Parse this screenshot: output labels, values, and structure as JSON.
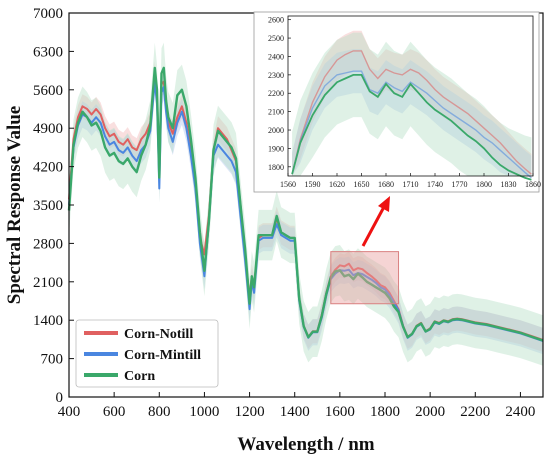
{
  "chart_data": {
    "type": "line",
    "xlabel": "Wavelength / nm",
    "ylabel": "Spectral Response Value",
    "xlim": [
      400,
      2500
    ],
    "ylim": [
      0,
      7000
    ],
    "xticks": [
      400,
      600,
      800,
      1000,
      1200,
      1400,
      1600,
      1800,
      2000,
      2200,
      2400
    ],
    "yticks": [
      0,
      700,
      1400,
      2100,
      2800,
      3500,
      4200,
      4900,
      5600,
      6300,
      7000
    ],
    "legend_position": "bottom-left",
    "series": [
      {
        "name": "Corn-Notill",
        "color": "#e06060",
        "band_color": "#f2b8b8",
        "x": [
          400,
          420,
          440,
          460,
          480,
          500,
          520,
          540,
          560,
          580,
          600,
          620,
          640,
          660,
          680,
          700,
          720,
          740,
          760,
          780,
          790,
          800,
          810,
          820,
          830,
          840,
          860,
          880,
          900,
          920,
          940,
          960,
          980,
          1000,
          1020,
          1040,
          1060,
          1080,
          1100,
          1120,
          1140,
          1160,
          1180,
          1200,
          1210,
          1220,
          1240,
          1260,
          1280,
          1300,
          1320,
          1340,
          1360,
          1380,
          1400,
          1420,
          1440,
          1460,
          1480,
          1500,
          1520,
          1540,
          1560,
          1580,
          1600,
          1620,
          1640,
          1660,
          1680,
          1700,
          1720,
          1740,
          1760,
          1780,
          1800,
          1820,
          1840,
          1860,
          1880,
          1900,
          1920,
          1940,
          1960,
          1980,
          2000,
          2020,
          2040,
          2060,
          2080,
          2100,
          2120,
          2140,
          2160,
          2180,
          2200,
          2250,
          2300,
          2350,
          2400,
          2450,
          2500
        ],
        "y": [
          3600,
          4700,
          5100,
          5300,
          5250,
          5150,
          5250,
          5150,
          4900,
          4750,
          4800,
          4650,
          4600,
          4700,
          4550,
          4500,
          4700,
          4800,
          5000,
          5900,
          5500,
          4200,
          5700,
          5750,
          5300,
          5000,
          4800,
          5100,
          5300,
          5000,
          4500,
          3900,
          2900,
          2600,
          3300,
          4500,
          4900,
          4800,
          4700,
          4500,
          4300,
          3500,
          2600,
          1800,
          2200,
          2000,
          2900,
          2950,
          2950,
          2950,
          3250,
          3000,
          2950,
          2900,
          2900,
          1800,
          1300,
          1100,
          1200,
          1200,
          1500,
          1900,
          2200,
          2320,
          2400,
          2380,
          2430,
          2310,
          2350,
          2330,
          2260,
          2200,
          2130,
          2040,
          2000,
          1900,
          1750,
          1600,
          1300,
          1100,
          1150,
          1300,
          1350,
          1200,
          1250,
          1380,
          1350,
          1400,
          1380,
          1420,
          1430,
          1420,
          1400,
          1380,
          1360,
          1330,
          1280,
          1230,
          1180,
          1110,
          1040
        ]
      },
      {
        "name": "Corn-Mintill",
        "color": "#4a86e0",
        "band_color": "#b4c8ee",
        "x": [
          400,
          420,
          440,
          460,
          480,
          500,
          520,
          540,
          560,
          580,
          600,
          620,
          640,
          660,
          680,
          700,
          720,
          740,
          760,
          780,
          790,
          800,
          810,
          820,
          830,
          840,
          860,
          880,
          900,
          920,
          940,
          960,
          980,
          1000,
          1020,
          1040,
          1060,
          1080,
          1100,
          1120,
          1140,
          1160,
          1180,
          1200,
          1210,
          1220,
          1240,
          1260,
          1280,
          1300,
          1320,
          1340,
          1360,
          1380,
          1400,
          1420,
          1440,
          1460,
          1480,
          1500,
          1520,
          1540,
          1560,
          1580,
          1600,
          1620,
          1640,
          1660,
          1680,
          1700,
          1720,
          1740,
          1760,
          1780,
          1800,
          1820,
          1840,
          1860,
          1880,
          1900,
          1920,
          1940,
          1960,
          1980,
          2000,
          2020,
          2040,
          2060,
          2080,
          2100,
          2120,
          2140,
          2160,
          2180,
          2200,
          2250,
          2300,
          2350,
          2400,
          2450,
          2500
        ],
        "y": [
          3500,
          4550,
          4950,
          5150,
          5100,
          5000,
          5100,
          5000,
          4750,
          4600,
          4650,
          4500,
          4450,
          4550,
          4400,
          4300,
          4500,
          4600,
          4850,
          5750,
          5350,
          3800,
          5550,
          5650,
          5200,
          4900,
          4650,
          5000,
          5200,
          4900,
          4400,
          3800,
          2800,
          2200,
          3200,
          4400,
          4600,
          4500,
          4400,
          4300,
          4100,
          3300,
          2500,
          1600,
          2100,
          1900,
          2850,
          2900,
          2900,
          2900,
          3150,
          2950,
          2900,
          2850,
          2850,
          1750,
          1280,
          1080,
          1180,
          1180,
          1450,
          1850,
          2150,
          2250,
          2310,
          2300,
          2320,
          2220,
          2260,
          2240,
          2190,
          2140,
          2080,
          2000,
          1960,
          1860,
          1720,
          1580,
          1290,
          1080,
          1140,
          1280,
          1330,
          1190,
          1230,
          1360,
          1330,
          1380,
          1360,
          1400,
          1410,
          1400,
          1380,
          1360,
          1340,
          1310,
          1260,
          1210,
          1160,
          1090,
          1020
        ]
      },
      {
        "name": "Corn",
        "color": "#3aa86a",
        "band_color": "#b8e0c8",
        "x": [
          400,
          420,
          440,
          460,
          480,
          500,
          520,
          540,
          560,
          580,
          600,
          620,
          640,
          660,
          680,
          700,
          720,
          740,
          760,
          780,
          790,
          800,
          810,
          820,
          830,
          840,
          860,
          880,
          900,
          920,
          940,
          960,
          980,
          1000,
          1020,
          1040,
          1060,
          1080,
          1100,
          1120,
          1140,
          1160,
          1180,
          1200,
          1210,
          1220,
          1240,
          1260,
          1280,
          1300,
          1320,
          1340,
          1360,
          1380,
          1400,
          1420,
          1440,
          1460,
          1480,
          1500,
          1520,
          1540,
          1560,
          1580,
          1600,
          1620,
          1640,
          1660,
          1680,
          1700,
          1720,
          1740,
          1760,
          1780,
          1800,
          1820,
          1840,
          1860,
          1880,
          1900,
          1920,
          1940,
          1960,
          1980,
          2000,
          2020,
          2040,
          2060,
          2080,
          2100,
          2120,
          2140,
          2160,
          2180,
          2200,
          2250,
          2300,
          2350,
          2400,
          2450,
          2500
        ],
        "y": [
          3400,
          4600,
          5000,
          5200,
          5100,
          4950,
          5000,
          4850,
          4550,
          4400,
          4450,
          4300,
          4250,
          4350,
          4200,
          4100,
          4400,
          4600,
          4950,
          6000,
          5600,
          4000,
          5900,
          6000,
          5400,
          5100,
          4900,
          5500,
          5600,
          5300,
          4700,
          4000,
          3000,
          2300,
          3200,
          4500,
          4850,
          4750,
          4650,
          4550,
          4350,
          3500,
          2700,
          1700,
          2200,
          2000,
          2950,
          2950,
          2950,
          2950,
          3300,
          3000,
          2950,
          2900,
          2900,
          1800,
          1290,
          1090,
          1190,
          1190,
          1480,
          1880,
          2180,
          2290,
          2310,
          2200,
          2230,
          2150,
          2250,
          2180,
          2100,
          2050,
          2000,
          1950,
          1900,
          1800,
          1650,
          1550,
          1280,
          1090,
          1150,
          1290,
          1340,
          1195,
          1240,
          1370,
          1340,
          1390,
          1370,
          1410,
          1420,
          1410,
          1390,
          1370,
          1350,
          1320,
          1270,
          1220,
          1170,
          1100,
          1030
        ]
      }
    ],
    "highlight_region": {
      "x": [
        1560,
        1860
      ],
      "y": [
        1700,
        2650
      ]
    },
    "inset": {
      "type": "line",
      "xlim": [
        1560,
        1860
      ],
      "ylim": [
        1750,
        2620
      ],
      "xticks": [
        1560,
        1590,
        1620,
        1650,
        1680,
        1710,
        1740,
        1770,
        1800,
        1830,
        1860
      ],
      "yticks": [
        1800,
        1900,
        2000,
        2100,
        2200,
        2300,
        2400,
        2500,
        2600
      ],
      "series": [
        {
          "name": "Corn-Notill",
          "x": [
            1565,
            1575,
            1590,
            1605,
            1620,
            1630,
            1640,
            1650,
            1660,
            1670,
            1680,
            1690,
            1700,
            1710,
            1720,
            1730,
            1740,
            1750,
            1760,
            1770,
            1780,
            1790,
            1800,
            1810,
            1820,
            1830,
            1840,
            1850,
            1858
          ],
          "y": [
            1760,
            1950,
            2150,
            2290,
            2380,
            2410,
            2430,
            2430,
            2330,
            2280,
            2330,
            2310,
            2300,
            2330,
            2310,
            2270,
            2220,
            2180,
            2150,
            2120,
            2090,
            2050,
            2010,
            1970,
            1930,
            1880,
            1830,
            1790,
            1760
          ]
        },
        {
          "name": "Corn-Mintill",
          "x": [
            1565,
            1575,
            1590,
            1605,
            1620,
            1630,
            1640,
            1650,
            1660,
            1670,
            1680,
            1690,
            1700,
            1710,
            1720,
            1730,
            1740,
            1750,
            1760,
            1770,
            1780,
            1790,
            1800,
            1810,
            1820,
            1830,
            1840,
            1850,
            1858
          ],
          "y": [
            1760,
            1940,
            2120,
            2240,
            2300,
            2310,
            2320,
            2320,
            2220,
            2200,
            2260,
            2230,
            2210,
            2260,
            2230,
            2200,
            2160,
            2120,
            2090,
            2060,
            2030,
            2000,
            1960,
            1930,
            1890,
            1850,
            1810,
            1770,
            1740
          ]
        },
        {
          "name": "Corn",
          "x": [
            1565,
            1575,
            1590,
            1605,
            1620,
            1630,
            1640,
            1650,
            1660,
            1670,
            1680,
            1690,
            1700,
            1710,
            1720,
            1730,
            1740,
            1750,
            1760,
            1770,
            1780,
            1790,
            1800,
            1810,
            1820,
            1830,
            1840,
            1850,
            1858
          ],
          "y": [
            1760,
            1930,
            2080,
            2190,
            2260,
            2280,
            2300,
            2300,
            2210,
            2180,
            2250,
            2200,
            2180,
            2250,
            2200,
            2150,
            2110,
            2080,
            2050,
            2010,
            1970,
            1940,
            1900,
            1850,
            1810,
            1780,
            1760,
            1740,
            1730
          ]
        }
      ]
    }
  }
}
